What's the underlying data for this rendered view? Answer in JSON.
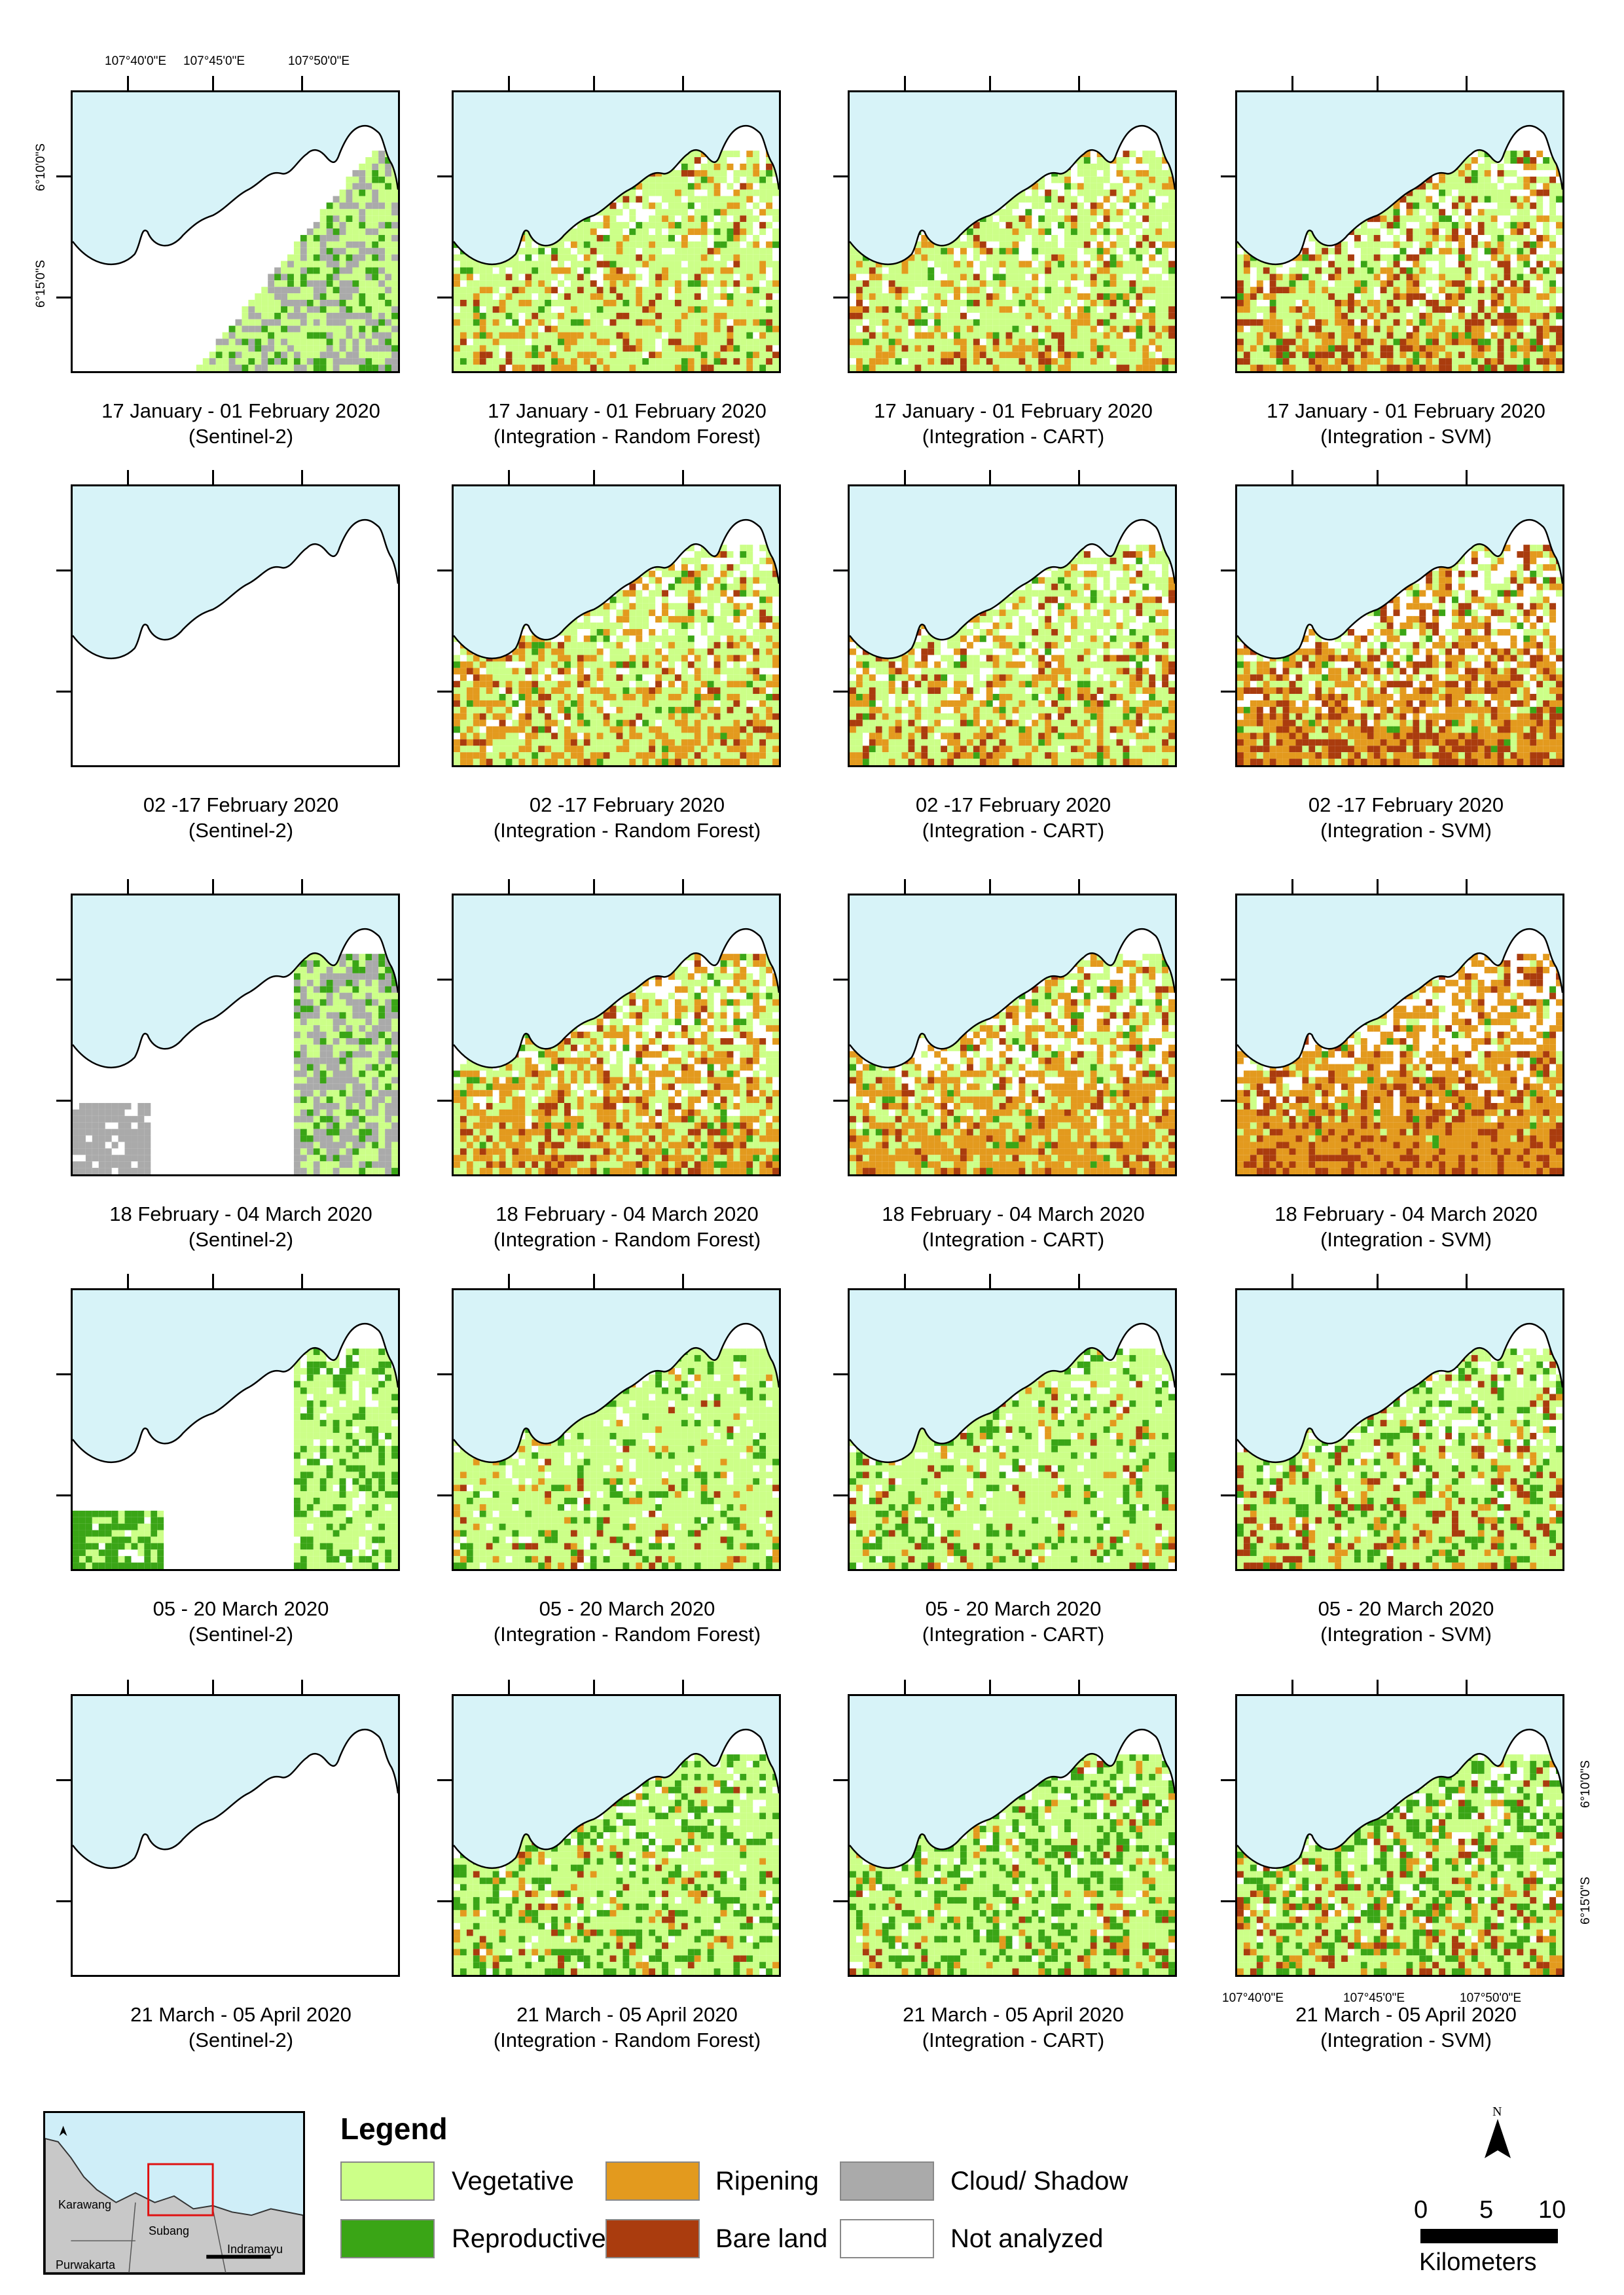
{
  "coords": {
    "top_lon": [
      "107°40'0\"E",
      "107°45'0\"E",
      "107°50'0\"E"
    ],
    "left_lat": [
      "6°10'0\"S",
      "6°15'0\"S"
    ],
    "bottom_lon": [
      "107°40'0\"E",
      "107°45'0\"E",
      "107°50'0\"E"
    ],
    "right_lat": [
      "6°10'0\"S",
      "6°15'0\"S"
    ]
  },
  "periods": [
    "17 January - 01 February 2020",
    "02 -17 February 2020",
    "18 February - 04 March 2020",
    "05 - 20 March 2020",
    "21 March - 05 April 2020"
  ],
  "methods": [
    "(Sentinel-2)",
    "(Integration - Random Forest)",
    "(Integration - CART)",
    "(Integration - SVM)"
  ],
  "colors": {
    "sea": "#d7f3f8",
    "vegetative": "#ccff88",
    "reproductive": "#3aa516",
    "ripening": "#e39a1e",
    "bare": "#aa3c0e",
    "cloud": "#aaaaaa",
    "not_analyzed": "#ffffff",
    "land_gray": "#c8c8c8"
  },
  "legend": {
    "title": "Legend",
    "items": [
      {
        "label": "Vegetative",
        "color": "#ccff88"
      },
      {
        "label": "Ripening",
        "color": "#e39a1e"
      },
      {
        "label": "Cloud/ Shadow",
        "color": "#aaaaaa"
      },
      {
        "label": "Reproductive",
        "color": "#3aa516"
      },
      {
        "label": "Bare land",
        "color": "#aa3c0e"
      },
      {
        "label": "Not analyzed",
        "color": "#ffffff"
      }
    ]
  },
  "inset_labels": [
    "Karawang",
    "Subang",
    "Indramayu",
    "Purwakarta"
  ],
  "north": "N",
  "scalebar": {
    "ticks": [
      "0",
      "5",
      "10"
    ],
    "unit": "Kilometers"
  },
  "map_mix": [
    [
      {
        "kind": "s2_partial"
      },
      {
        "veg": 0.62,
        "rep": 0.06,
        "rip": 0.16,
        "bare": 0.06
      },
      {
        "veg": 0.6,
        "rep": 0.05,
        "rip": 0.17,
        "bare": 0.07
      },
      {
        "veg": 0.45,
        "rep": 0.05,
        "rip": 0.22,
        "bare": 0.18
      }
    ],
    [
      {
        "kind": "s2_empty"
      },
      {
        "veg": 0.48,
        "rep": 0.04,
        "rip": 0.28,
        "bare": 0.08
      },
      {
        "veg": 0.5,
        "rep": 0.04,
        "rip": 0.24,
        "bare": 0.1
      },
      {
        "veg": 0.22,
        "rep": 0.03,
        "rip": 0.38,
        "bare": 0.25
      }
    ],
    [
      {
        "kind": "s2_cloud"
      },
      {
        "veg": 0.35,
        "rep": 0.03,
        "rip": 0.42,
        "bare": 0.1
      },
      {
        "veg": 0.34,
        "rep": 0.03,
        "rip": 0.44,
        "bare": 0.09
      },
      {
        "veg": 0.12,
        "rep": 0.02,
        "rip": 0.6,
        "bare": 0.18
      }
    ],
    [
      {
        "kind": "s2_march"
      },
      {
        "veg": 0.72,
        "rep": 0.12,
        "rip": 0.06,
        "bare": 0.03
      },
      {
        "veg": 0.7,
        "rep": 0.12,
        "rip": 0.06,
        "bare": 0.04
      },
      {
        "veg": 0.58,
        "rep": 0.12,
        "rip": 0.1,
        "bare": 0.12
      }
    ],
    [
      {
        "kind": "s2_empty"
      },
      {
        "veg": 0.62,
        "rep": 0.22,
        "rip": 0.06,
        "bare": 0.03
      },
      {
        "veg": 0.6,
        "rep": 0.22,
        "rip": 0.07,
        "bare": 0.04
      },
      {
        "veg": 0.52,
        "rep": 0.2,
        "rip": 0.1,
        "bare": 0.1
      }
    ]
  ]
}
